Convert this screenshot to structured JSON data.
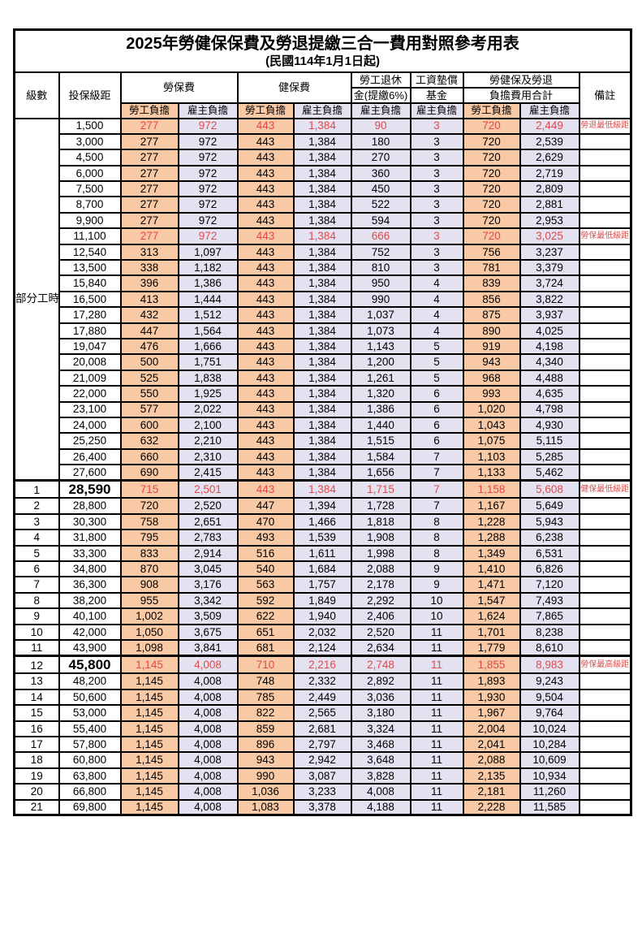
{
  "title": "2025年勞健保保費及勞退提繳三合一費用對照參考用表",
  "subtitle": "(民國114年1月1日起)",
  "colors": {
    "employee_bg": "#F8C9A4",
    "employer_bg": "#E4E2F1",
    "highlight_red": "#E04A4A",
    "border": "#000000"
  },
  "header": {
    "level": "級數",
    "bracket": "投保級距",
    "labor_insurance": "勞保費",
    "health_insurance": "健保費",
    "pension_line1": "勞工退休",
    "pension_line2": "金(提繳6%)",
    "wage_fund_line1": "工資墊償",
    "wage_fund_line2": "基金",
    "total_line1": "勞健保及勞退",
    "total_line2": "負擔費用合計",
    "remark": "備註",
    "employee_burden": "勞工負擔",
    "employer_burden": "雇主負擔"
  },
  "part_time_label": "部分工時",
  "part_time_rowspan": 23,
  "columns": [
    "level",
    "bracket",
    "li_emp",
    "li_er",
    "hi_emp",
    "hi_er",
    "pension",
    "fund",
    "tot_emp",
    "tot_er",
    "remark"
  ],
  "rows": [
    {
      "level": null,
      "bracket": "1,500",
      "v": [
        "277",
        "972",
        "443",
        "1,384",
        "90",
        "3",
        "720",
        "2,449"
      ],
      "remark": "勞退最低級距",
      "red": true,
      "big": false
    },
    {
      "level": null,
      "bracket": "3,000",
      "v": [
        "277",
        "972",
        "443",
        "1,384",
        "180",
        "3",
        "720",
        "2,539"
      ],
      "remark": "",
      "red": false,
      "big": false
    },
    {
      "level": null,
      "bracket": "4,500",
      "v": [
        "277",
        "972",
        "443",
        "1,384",
        "270",
        "3",
        "720",
        "2,629"
      ],
      "remark": "",
      "red": false,
      "big": false
    },
    {
      "level": null,
      "bracket": "6,000",
      "v": [
        "277",
        "972",
        "443",
        "1,384",
        "360",
        "3",
        "720",
        "2,719"
      ],
      "remark": "",
      "red": false,
      "big": false
    },
    {
      "level": null,
      "bracket": "7,500",
      "v": [
        "277",
        "972",
        "443",
        "1,384",
        "450",
        "3",
        "720",
        "2,809"
      ],
      "remark": "",
      "red": false,
      "big": false
    },
    {
      "level": null,
      "bracket": "8,700",
      "v": [
        "277",
        "972",
        "443",
        "1,384",
        "522",
        "3",
        "720",
        "2,881"
      ],
      "remark": "",
      "red": false,
      "big": false
    },
    {
      "level": null,
      "bracket": "9,900",
      "v": [
        "277",
        "972",
        "443",
        "1,384",
        "594",
        "3",
        "720",
        "2,953"
      ],
      "remark": "",
      "red": false,
      "big": false
    },
    {
      "level": null,
      "bracket": "11,100",
      "v": [
        "277",
        "972",
        "443",
        "1,384",
        "666",
        "3",
        "720",
        "3,025"
      ],
      "remark": "勞保最低級距",
      "red": true,
      "big": false
    },
    {
      "level": null,
      "bracket": "12,540",
      "v": [
        "313",
        "1,097",
        "443",
        "1,384",
        "752",
        "3",
        "756",
        "3,237"
      ],
      "remark": "",
      "red": false,
      "big": false
    },
    {
      "level": null,
      "bracket": "13,500",
      "v": [
        "338",
        "1,182",
        "443",
        "1,384",
        "810",
        "3",
        "781",
        "3,379"
      ],
      "remark": "",
      "red": false,
      "big": false
    },
    {
      "level": null,
      "bracket": "15,840",
      "v": [
        "396",
        "1,386",
        "443",
        "1,384",
        "950",
        "4",
        "839",
        "3,724"
      ],
      "remark": "",
      "red": false,
      "big": false
    },
    {
      "level": null,
      "bracket": "16,500",
      "v": [
        "413",
        "1,444",
        "443",
        "1,384",
        "990",
        "4",
        "856",
        "3,822"
      ],
      "remark": "",
      "red": false,
      "big": false
    },
    {
      "level": null,
      "bracket": "17,280",
      "v": [
        "432",
        "1,512",
        "443",
        "1,384",
        "1,037",
        "4",
        "875",
        "3,937"
      ],
      "remark": "",
      "red": false,
      "big": false
    },
    {
      "level": null,
      "bracket": "17,880",
      "v": [
        "447",
        "1,564",
        "443",
        "1,384",
        "1,073",
        "4",
        "890",
        "4,025"
      ],
      "remark": "",
      "red": false,
      "big": false
    },
    {
      "level": null,
      "bracket": "19,047",
      "v": [
        "476",
        "1,666",
        "443",
        "1,384",
        "1,143",
        "5",
        "919",
        "4,198"
      ],
      "remark": "",
      "red": false,
      "big": false
    },
    {
      "level": null,
      "bracket": "20,008",
      "v": [
        "500",
        "1,751",
        "443",
        "1,384",
        "1,200",
        "5",
        "943",
        "4,340"
      ],
      "remark": "",
      "red": false,
      "big": false
    },
    {
      "level": null,
      "bracket": "21,009",
      "v": [
        "525",
        "1,838",
        "443",
        "1,384",
        "1,261",
        "5",
        "968",
        "4,488"
      ],
      "remark": "",
      "red": false,
      "big": false
    },
    {
      "level": null,
      "bracket": "22,000",
      "v": [
        "550",
        "1,925",
        "443",
        "1,384",
        "1,320",
        "6",
        "993",
        "4,635"
      ],
      "remark": "",
      "red": false,
      "big": false
    },
    {
      "level": null,
      "bracket": "23,100",
      "v": [
        "577",
        "2,022",
        "443",
        "1,384",
        "1,386",
        "6",
        "1,020",
        "4,798"
      ],
      "remark": "",
      "red": false,
      "big": false
    },
    {
      "level": null,
      "bracket": "24,000",
      "v": [
        "600",
        "2,100",
        "443",
        "1,384",
        "1,440",
        "6",
        "1,043",
        "4,930"
      ],
      "remark": "",
      "red": false,
      "big": false
    },
    {
      "level": null,
      "bracket": "25,250",
      "v": [
        "632",
        "2,210",
        "443",
        "1,384",
        "1,515",
        "6",
        "1,075",
        "5,115"
      ],
      "remark": "",
      "red": false,
      "big": false
    },
    {
      "level": null,
      "bracket": "26,400",
      "v": [
        "660",
        "2,310",
        "443",
        "1,384",
        "1,584",
        "7",
        "1,103",
        "5,285"
      ],
      "remark": "",
      "red": false,
      "big": false
    },
    {
      "level": null,
      "bracket": "27,600",
      "v": [
        "690",
        "2,415",
        "443",
        "1,384",
        "1,656",
        "7",
        "1,133",
        "5,462"
      ],
      "remark": "",
      "red": false,
      "big": false
    },
    {
      "level": "1",
      "bracket": "28,590",
      "v": [
        "715",
        "2,501",
        "443",
        "1,384",
        "1,715",
        "7",
        "1,158",
        "5,608"
      ],
      "remark": "健保最低級距",
      "red": true,
      "big": true
    },
    {
      "level": "2",
      "bracket": "28,800",
      "v": [
        "720",
        "2,520",
        "447",
        "1,394",
        "1,728",
        "7",
        "1,167",
        "5,649"
      ],
      "remark": "",
      "red": false,
      "big": false
    },
    {
      "level": "3",
      "bracket": "30,300",
      "v": [
        "758",
        "2,651",
        "470",
        "1,466",
        "1,818",
        "8",
        "1,228",
        "5,943"
      ],
      "remark": "",
      "red": false,
      "big": false
    },
    {
      "level": "4",
      "bracket": "31,800",
      "v": [
        "795",
        "2,783",
        "493",
        "1,539",
        "1,908",
        "8",
        "1,288",
        "6,238"
      ],
      "remark": "",
      "red": false,
      "big": false
    },
    {
      "level": "5",
      "bracket": "33,300",
      "v": [
        "833",
        "2,914",
        "516",
        "1,611",
        "1,998",
        "8",
        "1,349",
        "6,531"
      ],
      "remark": "",
      "red": false,
      "big": false
    },
    {
      "level": "6",
      "bracket": "34,800",
      "v": [
        "870",
        "3,045",
        "540",
        "1,684",
        "2,088",
        "9",
        "1,410",
        "6,826"
      ],
      "remark": "",
      "red": false,
      "big": false
    },
    {
      "level": "7",
      "bracket": "36,300",
      "v": [
        "908",
        "3,176",
        "563",
        "1,757",
        "2,178",
        "9",
        "1,471",
        "7,120"
      ],
      "remark": "",
      "red": false,
      "big": false
    },
    {
      "level": "8",
      "bracket": "38,200",
      "v": [
        "955",
        "3,342",
        "592",
        "1,849",
        "2,292",
        "10",
        "1,547",
        "7,493"
      ],
      "remark": "",
      "red": false,
      "big": false
    },
    {
      "level": "9",
      "bracket": "40,100",
      "v": [
        "1,002",
        "3,509",
        "622",
        "1,940",
        "2,406",
        "10",
        "1,624",
        "7,865"
      ],
      "remark": "",
      "red": false,
      "big": false
    },
    {
      "level": "10",
      "bracket": "42,000",
      "v": [
        "1,050",
        "3,675",
        "651",
        "2,032",
        "2,520",
        "11",
        "1,701",
        "8,238"
      ],
      "remark": "",
      "red": false,
      "big": false
    },
    {
      "level": "11",
      "bracket": "43,900",
      "v": [
        "1,098",
        "3,841",
        "681",
        "2,124",
        "2,634",
        "11",
        "1,779",
        "8,610"
      ],
      "remark": "",
      "red": false,
      "big": false
    },
    {
      "level": "12",
      "bracket": "45,800",
      "v": [
        "1,145",
        "4,008",
        "710",
        "2,216",
        "2,748",
        "11",
        "1,855",
        "8,983"
      ],
      "remark": "勞保最高級距",
      "red": true,
      "big": true
    },
    {
      "level": "13",
      "bracket": "48,200",
      "v": [
        "1,145",
        "4,008",
        "748",
        "2,332",
        "2,892",
        "11",
        "1,893",
        "9,243"
      ],
      "remark": "",
      "red": false,
      "big": false
    },
    {
      "level": "14",
      "bracket": "50,600",
      "v": [
        "1,145",
        "4,008",
        "785",
        "2,449",
        "3,036",
        "11",
        "1,930",
        "9,504"
      ],
      "remark": "",
      "red": false,
      "big": false
    },
    {
      "level": "15",
      "bracket": "53,000",
      "v": [
        "1,145",
        "4,008",
        "822",
        "2,565",
        "3,180",
        "11",
        "1,967",
        "9,764"
      ],
      "remark": "",
      "red": false,
      "big": false
    },
    {
      "level": "16",
      "bracket": "55,400",
      "v": [
        "1,145",
        "4,008",
        "859",
        "2,681",
        "3,324",
        "11",
        "2,004",
        "10,024"
      ],
      "remark": "",
      "red": false,
      "big": false
    },
    {
      "level": "17",
      "bracket": "57,800",
      "v": [
        "1,145",
        "4,008",
        "896",
        "2,797",
        "3,468",
        "11",
        "2,041",
        "10,284"
      ],
      "remark": "",
      "red": false,
      "big": false
    },
    {
      "level": "18",
      "bracket": "60,800",
      "v": [
        "1,145",
        "4,008",
        "943",
        "2,942",
        "3,648",
        "11",
        "2,088",
        "10,609"
      ],
      "remark": "",
      "red": false,
      "big": false
    },
    {
      "level": "19",
      "bracket": "63,800",
      "v": [
        "1,145",
        "4,008",
        "990",
        "3,087",
        "3,828",
        "11",
        "2,135",
        "10,934"
      ],
      "remark": "",
      "red": false,
      "big": false
    },
    {
      "level": "20",
      "bracket": "66,800",
      "v": [
        "1,145",
        "4,008",
        "1,036",
        "3,233",
        "4,008",
        "11",
        "2,181",
        "11,260"
      ],
      "remark": "",
      "red": false,
      "big": false
    },
    {
      "level": "21",
      "bracket": "69,800",
      "v": [
        "1,145",
        "4,008",
        "1,083",
        "3,378",
        "4,188",
        "11",
        "2,228",
        "11,585"
      ],
      "remark": "",
      "red": false,
      "big": false
    }
  ]
}
